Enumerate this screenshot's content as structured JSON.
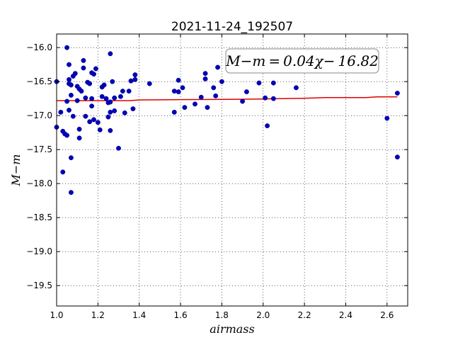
{
  "chart_data": {
    "type": "scatter",
    "title": "2021-11-24_192507",
    "xlabel": "airmass",
    "ylabel": "M−m",
    "xlim": [
      1.0,
      2.7
    ],
    "ylim": [
      -19.8,
      -15.8
    ],
    "y_inverted": false,
    "grid": true,
    "x_ticks": [
      1.0,
      1.2,
      1.4,
      1.6,
      1.8,
      2.0,
      2.2,
      2.4,
      2.6
    ],
    "x_tick_labels": [
      "1.0",
      "1.2",
      "1.4",
      "1.6",
      "1.8",
      "2.0",
      "2.2",
      "2.4",
      "2.6"
    ],
    "y_ticks": [
      -16.0,
      -16.5,
      -17.0,
      -17.5,
      -18.0,
      -18.5,
      -19.0,
      -19.5
    ],
    "y_tick_labels": [
      "−16.0",
      "−16.5",
      "−17.0",
      "−17.5",
      "−18.0",
      "−18.5",
      "−19.0",
      "−19.5"
    ],
    "annotation": "M−m = 0.04χ− 16.82",
    "annotation_placement": "top-right",
    "point_color": "#0000bf",
    "line_color": "#e00000",
    "fit_line": {
      "x": [
        1.0,
        1.35,
        1.4,
        1.6,
        1.85,
        2.0,
        2.2,
        2.3,
        2.5,
        2.55,
        2.65
      ],
      "y": [
        -16.78,
        -16.78,
        -16.77,
        -16.765,
        -16.76,
        -16.755,
        -16.745,
        -16.735,
        -16.735,
        -16.725,
        -16.725
      ]
    },
    "points": {
      "x": [
        1.0,
        1.0,
        1.02,
        1.03,
        1.03,
        1.04,
        1.05,
        1.05,
        1.05,
        1.06,
        1.06,
        1.06,
        1.06,
        1.07,
        1.07,
        1.07,
        1.07,
        1.08,
        1.08,
        1.09,
        1.1,
        1.1,
        1.11,
        1.11,
        1.11,
        1.12,
        1.13,
        1.13,
        1.14,
        1.14,
        1.15,
        1.16,
        1.16,
        1.17,
        1.17,
        1.17,
        1.18,
        1.18,
        1.19,
        1.2,
        1.21,
        1.22,
        1.22,
        1.23,
        1.24,
        1.25,
        1.25,
        1.26,
        1.26,
        1.26,
        1.26,
        1.27,
        1.28,
        1.28,
        1.3,
        1.31,
        1.32,
        1.33,
        1.35,
        1.36,
        1.37,
        1.38,
        1.38,
        1.45,
        1.57,
        1.57,
        1.59,
        1.59,
        1.61,
        1.62,
        1.67,
        1.7,
        1.72,
        1.72,
        1.73,
        1.76,
        1.77,
        1.78,
        1.8,
        1.9,
        1.92,
        1.98,
        2.01,
        2.02,
        2.05,
        2.05,
        2.16,
        2.6,
        2.65,
        2.65
      ],
      "y": [
        -16.5,
        -17.17,
        -16.95,
        -17.23,
        -17.83,
        -17.27,
        -16.0,
        -16.79,
        -17.29,
        -16.25,
        -16.47,
        -16.53,
        -16.92,
        -16.7,
        -16.55,
        -17.62,
        -18.13,
        -16.42,
        -17.01,
        -16.38,
        -16.57,
        -16.78,
        -16.61,
        -17.2,
        -17.33,
        -16.64,
        -16.3,
        -16.19,
        -16.74,
        -17.01,
        -16.51,
        -16.53,
        -17.09,
        -16.75,
        -16.86,
        -16.37,
        -16.39,
        -17.06,
        -16.31,
        -17.1,
        -17.21,
        -16.58,
        -16.72,
        -16.55,
        -16.75,
        -16.81,
        -17.02,
        -16.09,
        -16.8,
        -16.95,
        -17.22,
        -16.5,
        -16.74,
        -16.93,
        -17.48,
        -16.72,
        -16.64,
        -16.96,
        -16.64,
        -16.49,
        -16.9,
        -16.4,
        -16.47,
        -16.53,
        -16.64,
        -16.95,
        -16.48,
        -16.65,
        -16.59,
        -16.88,
        -16.83,
        -16.73,
        -16.38,
        -16.46,
        -16.88,
        -16.59,
        -16.71,
        -16.29,
        -16.5,
        -16.79,
        -16.65,
        -16.52,
        -16.74,
        -17.15,
        -16.52,
        -16.75,
        -16.59,
        -17.04,
        -16.67,
        -17.61
      ]
    }
  }
}
